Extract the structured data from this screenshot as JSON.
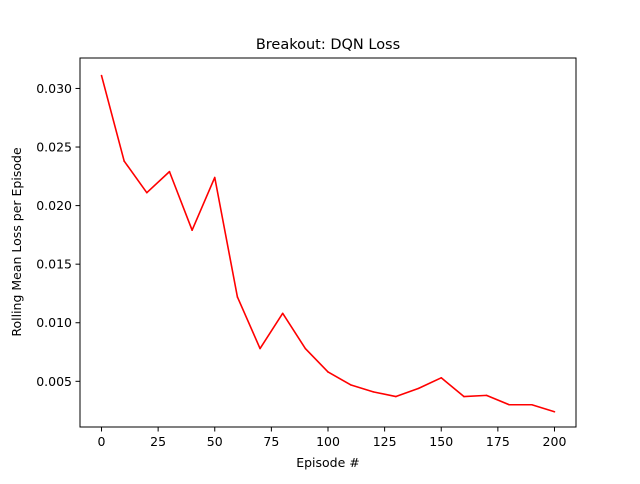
{
  "chart_data": {
    "type": "line",
    "title": "Breakout: DQN Loss",
    "xlabel": "Episode #",
    "ylabel": "Rolling Mean Loss per Episode",
    "xlim": [
      -9.5,
      209.5
    ],
    "ylim": [
      0.0011,
      0.0326
    ],
    "xticks": [
      0,
      25,
      50,
      75,
      100,
      125,
      150,
      175,
      200
    ],
    "yticks": [
      0.005,
      0.01,
      0.015,
      0.02,
      0.025,
      0.03
    ],
    "xtick_labels": [
      "0",
      "25",
      "50",
      "75",
      "100",
      "125",
      "150",
      "175",
      "200"
    ],
    "ytick_labels": [
      "0.005",
      "0.010",
      "0.015",
      "0.020",
      "0.025",
      "0.030"
    ],
    "grid": false,
    "series": [
      {
        "color": "#ff0000",
        "x": [
          0,
          10,
          20,
          30,
          40,
          50,
          60,
          70,
          80,
          90,
          100,
          110,
          120,
          130,
          140,
          150,
          160,
          170,
          180,
          190,
          200
        ],
        "y": [
          0.0311,
          0.0238,
          0.0211,
          0.0229,
          0.0179,
          0.0224,
          0.0122,
          0.0078,
          0.0108,
          0.0078,
          0.0058,
          0.0047,
          0.0041,
          0.0037,
          0.0044,
          0.0053,
          0.0037,
          0.0038,
          0.003,
          0.003,
          0.0024
        ]
      }
    ]
  }
}
